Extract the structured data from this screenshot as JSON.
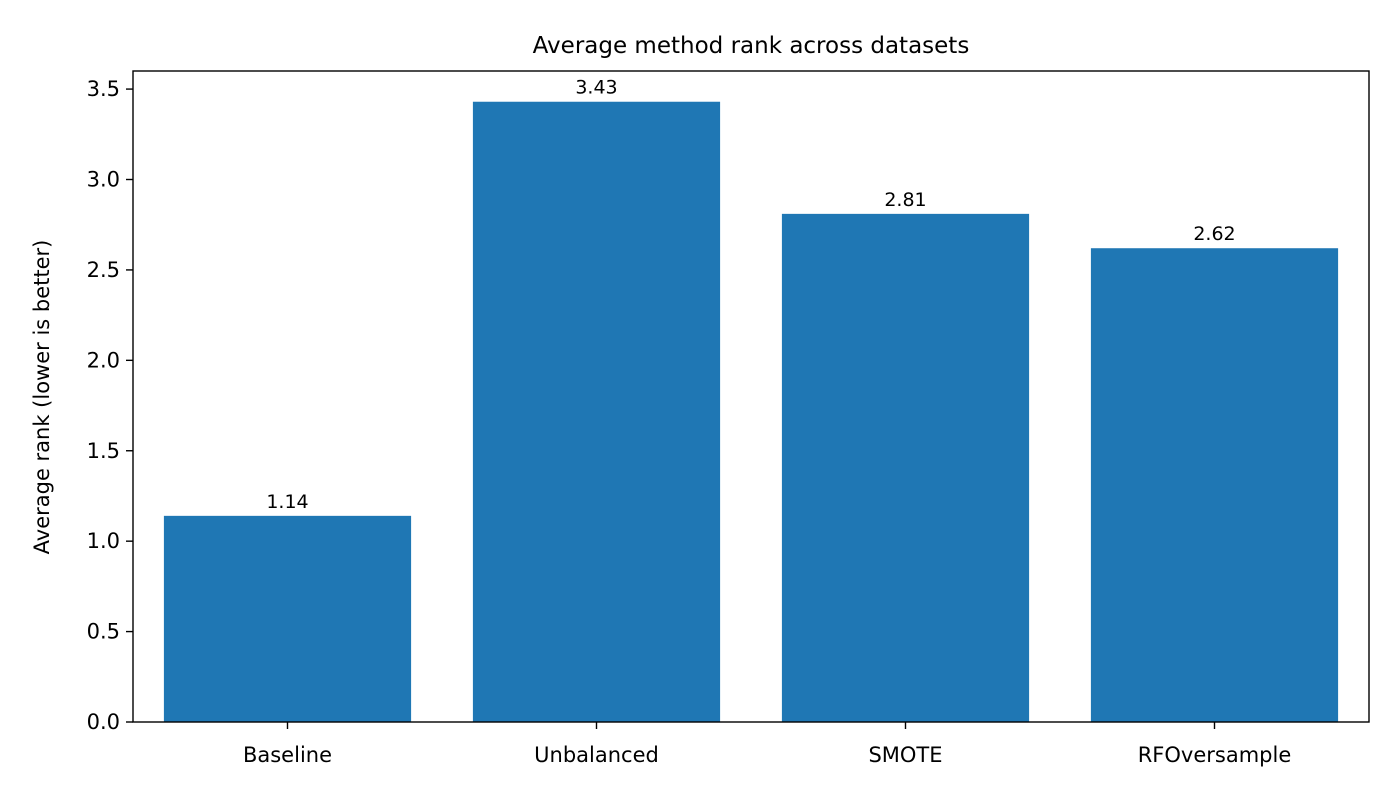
{
  "chart_data": {
    "type": "bar",
    "title": "Average method rank across datasets",
    "xlabel": "",
    "ylabel": "Average rank (lower is better)",
    "categories": [
      "Baseline",
      "Unbalanced",
      "SMOTE",
      "RFOversample"
    ],
    "values": [
      1.14,
      3.43,
      2.81,
      2.62
    ],
    "data_labels": [
      "1.14",
      "3.43",
      "2.81",
      "2.62"
    ],
    "ylim": [
      0,
      3.6
    ],
    "yticks": [
      0.0,
      0.5,
      1.0,
      1.5,
      2.0,
      2.5,
      3.0,
      3.5
    ],
    "ytick_labels": [
      "0.0",
      "0.5",
      "1.0",
      "1.5",
      "2.0",
      "2.5",
      "3.0",
      "3.5"
    ],
    "grid": false,
    "legend": "none",
    "bar_color": "#1f77b4"
  }
}
